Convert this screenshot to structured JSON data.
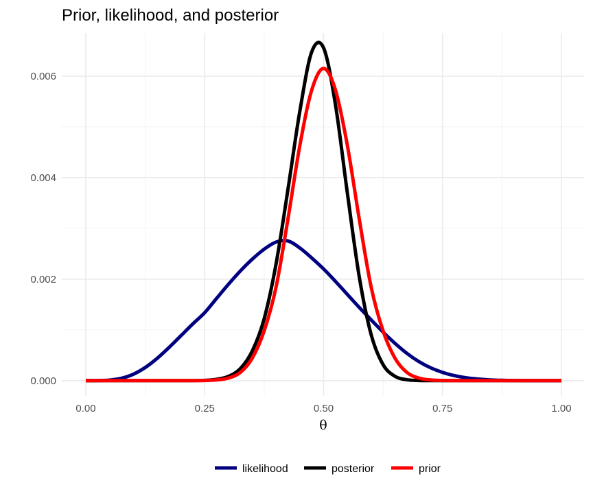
{
  "chart_data": {
    "type": "line",
    "title": "Prior, likelihood, and posterior",
    "xlabel": "θ",
    "ylabel": "",
    "xlim": [
      0,
      1
    ],
    "ylim": [
      -0.0003,
      0.00685
    ],
    "xticks": [
      0,
      0.25,
      0.5,
      0.75,
      1
    ],
    "xtick_labels": [
      "0.00",
      "0.25",
      "0.50",
      "0.75",
      "1.00"
    ],
    "yticks": [
      0,
      0.002,
      0.004,
      0.006
    ],
    "ytick_labels": [
      "0.000",
      "0.002",
      "0.004",
      "0.006"
    ],
    "grid": true,
    "legend_position": "bottom",
    "series": [
      {
        "name": "likelihood",
        "color": "#000080",
        "x": [
          0,
          0.025,
          0.05,
          0.075,
          0.1,
          0.125,
          0.15,
          0.175,
          0.2,
          0.225,
          0.25,
          0.275,
          0.3,
          0.325,
          0.35,
          0.375,
          0.4,
          0.425,
          0.45,
          0.475,
          0.5,
          0.525,
          0.55,
          0.575,
          0.6,
          0.625,
          0.65,
          0.675,
          0.7,
          0.725,
          0.75,
          0.775,
          0.8,
          0.825,
          0.85,
          0.875,
          0.9,
          0.925,
          0.95,
          0.975,
          1
        ],
        "y": [
          0,
          1e-06,
          1.1e-05,
          4.7e-05,
          0.000127,
          0.000259,
          0.000439,
          0.000654,
          0.000885,
          0.001118,
          0.00134,
          0.001621,
          0.0019,
          0.002161,
          0.002393,
          0.00259,
          0.00273,
          0.002752,
          0.002614,
          0.002417,
          0.0022,
          0.001955,
          0.001698,
          0.001442,
          0.001197,
          0.000957,
          0.000736,
          0.000539,
          0.000378,
          0.000254,
          0.000163,
          9.9e-05,
          5.7e-05,
          3.1e-05,
          1.5e-05,
          7e-06,
          3e-06,
          1e-06,
          0,
          0,
          0
        ]
      },
      {
        "name": "posterior",
        "color": "#000000",
        "x": [
          0,
          0.1,
          0.2,
          0.25,
          0.275,
          0.3,
          0.325,
          0.35,
          0.375,
          0.4,
          0.425,
          0.45,
          0.475,
          0.5,
          0.525,
          0.55,
          0.575,
          0.6,
          0.625,
          0.65,
          0.675,
          0.7,
          0.75,
          0.8,
          1
        ],
        "y": [
          0,
          0,
          0,
          6e-06,
          2.6e-05,
          8.5e-05,
          0.000238,
          0.000584,
          0.001218,
          0.002297,
          0.003764,
          0.005308,
          0.006476,
          0.006554,
          0.005431,
          0.003691,
          0.002043,
          0.000906,
          0.000317,
          8.6e-05,
          1.8e-05,
          3e-06,
          0,
          0,
          0
        ]
      },
      {
        "name": "prior",
        "color": "#ff0000",
        "x": [
          0,
          0.1,
          0.2,
          0.25,
          0.275,
          0.3,
          0.325,
          0.35,
          0.375,
          0.4,
          0.425,
          0.45,
          0.475,
          0.5,
          0.525,
          0.55,
          0.575,
          0.6,
          0.625,
          0.65,
          0.675,
          0.7,
          0.725,
          0.75,
          0.8,
          1
        ],
        "y": [
          0,
          0,
          0,
          3e-06,
          1.4e-05,
          5.2e-05,
          0.000163,
          0.000444,
          0.000981,
          0.001842,
          0.003181,
          0.004631,
          0.005724,
          0.00615,
          0.005724,
          0.004631,
          0.003181,
          0.001842,
          0.000981,
          0.000444,
          0.000163,
          5.2e-05,
          1.4e-05,
          3e-06,
          0,
          0
        ]
      }
    ]
  }
}
